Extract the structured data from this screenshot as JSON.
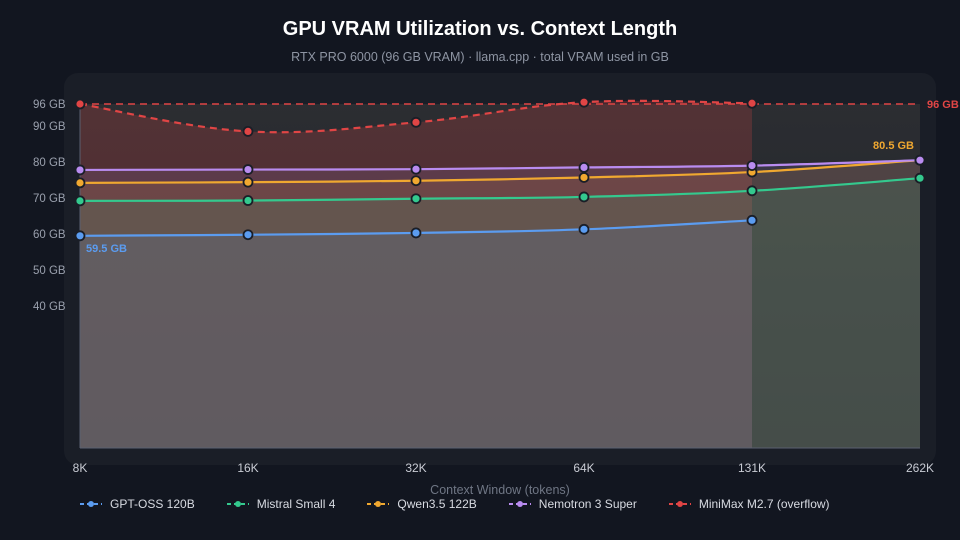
{
  "chart_data": {
    "type": "line",
    "title": "GPU VRAM Utilization vs. Context Length",
    "subtitle": "RTX PRO 6000 (96 GB VRAM) · llama.cpp · total VRAM used in GB",
    "xlabel": "Context Window (tokens)",
    "ylabel": "",
    "categories": [
      "8K",
      "16K",
      "32K",
      "64K",
      "131K",
      "262K"
    ],
    "ylim": [
      30,
      100
    ],
    "yticks": [
      {
        "value": 40,
        "label": "40 GB"
      },
      {
        "value": 50,
        "label": "50 GB"
      },
      {
        "value": 60,
        "label": "60 GB"
      },
      {
        "value": 70,
        "label": "70 GB"
      },
      {
        "value": 80,
        "label": "80 GB"
      },
      {
        "value": 90,
        "label": "90 GB"
      },
      {
        "value": 96,
        "label": "96 GB"
      }
    ],
    "grid": false,
    "legend_position": "bottom",
    "vram_limit": {
      "value": 96,
      "label": "96 GB",
      "color": "#e04545"
    },
    "series": [
      {
        "name": "GPT-OSS 120B",
        "color": "#5b9cf0",
        "dashed": false,
        "values": [
          59.5,
          59.8,
          60.3,
          61.3,
          63.8,
          null
        ]
      },
      {
        "name": "Mistral Small 4",
        "color": "#34c98e",
        "dashed": false,
        "values": [
          69.2,
          69.3,
          69.8,
          70.3,
          72.0,
          75.5
        ]
      },
      {
        "name": "Qwen3.5 122B",
        "color": "#f0a830",
        "dashed": false,
        "values": [
          74.2,
          74.4,
          74.8,
          75.7,
          77.2,
          80.5
        ]
      },
      {
        "name": "Nemotron 3 Super",
        "color": "#b98cf0",
        "dashed": false,
        "values": [
          77.8,
          77.9,
          78.0,
          78.5,
          79.0,
          80.5
        ]
      },
      {
        "name": "MiniMax M2.7 (overflow)",
        "color": "#e04545",
        "dashed": true,
        "values": [
          96.0,
          88.5,
          91.0,
          96.5,
          96.2,
          null
        ]
      }
    ],
    "annotations": [
      {
        "text": "59.5 GB",
        "series": 0,
        "index": 0,
        "color": "#5b9cf0"
      },
      {
        "text": "80.5 GB",
        "series": 2,
        "index": 5,
        "color": "#f0a830"
      }
    ]
  }
}
